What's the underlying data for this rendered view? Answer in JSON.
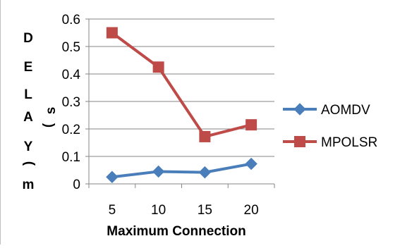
{
  "chart_data": {
    "type": "line",
    "title": "",
    "categories": [
      "5",
      "10",
      "15",
      "20"
    ],
    "series": [
      {
        "name": "AOMDV",
        "values": [
          0.025,
          0.045,
          0.042,
          0.073
        ],
        "color": "#4a7ebb",
        "marker": "diamond"
      },
      {
        "name": "MPOLSR",
        "values": [
          0.55,
          0.425,
          0.172,
          0.215
        ],
        "color": "#be4b48",
        "marker": "square"
      }
    ],
    "xlabel": "Maximum Connection",
    "ylabel_letters": [
      "D",
      "E",
      "L",
      "A",
      "Y"
    ],
    "ylabel_unit_parts": [
      "(",
      "s",
      ")",
      "m"
    ],
    "ylim": [
      0,
      0.6
    ],
    "yticks": [
      0,
      0.1,
      0.2,
      0.3,
      0.4,
      0.5,
      0.6
    ],
    "ytick_labels": [
      "0",
      "0.1",
      "0.2",
      "0.3",
      "0.4",
      "0.5",
      "0.6"
    ],
    "grid": true,
    "legend_position": "right",
    "gridline_color": "#868686",
    "axis_color": "#868686"
  }
}
